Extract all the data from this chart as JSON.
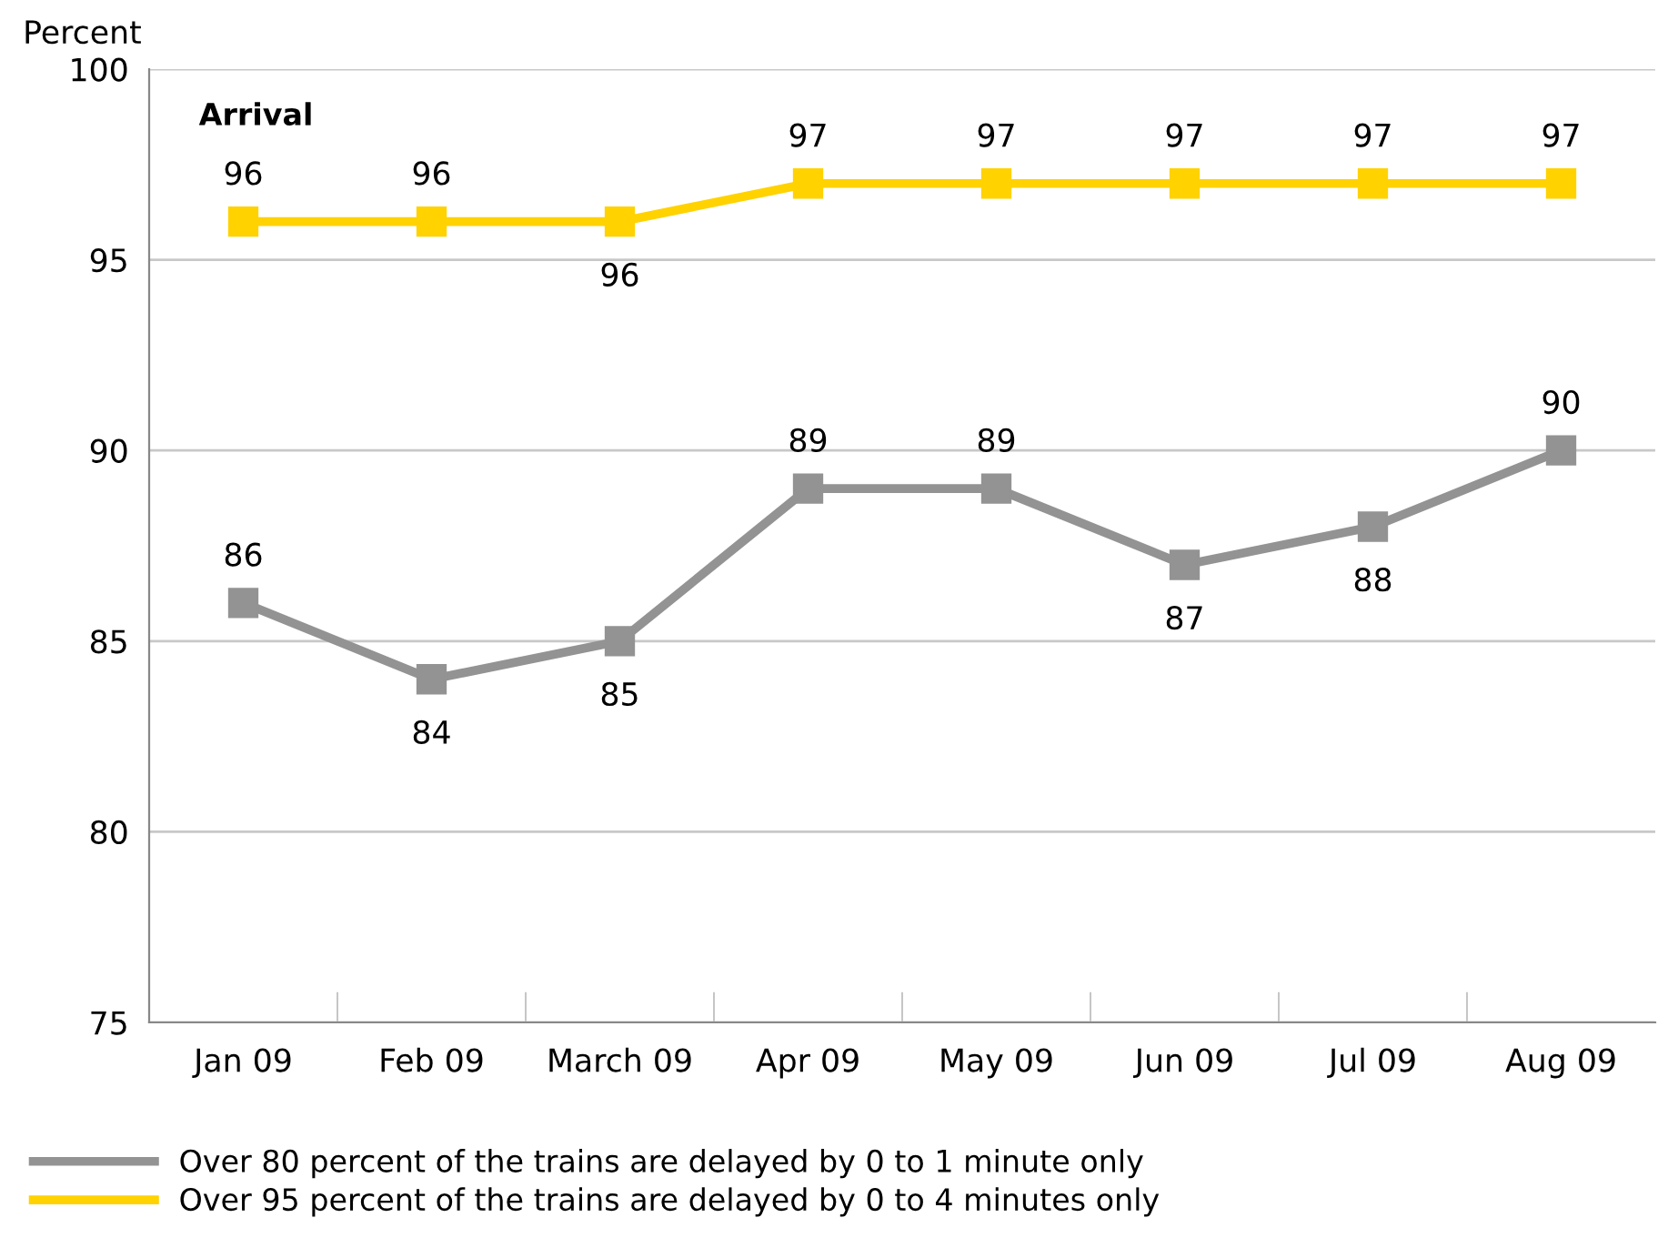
{
  "chart_data": {
    "type": "line",
    "categories": [
      "Jan 09",
      "Feb 09",
      "March 09",
      "Apr 09",
      "May 09",
      "Jun 09",
      "Jul 09",
      "Aug 09"
    ],
    "series": [
      {
        "name": "Over 80 percent of the trains are delayed by 0 to 1 minute only",
        "color": "#939393",
        "values": [
          86,
          84,
          85,
          89,
          89,
          87,
          88,
          90
        ]
      },
      {
        "name": "Over 95 percent of the trains are delayed by 0 to 4 minutes only",
        "color": "#ffd200",
        "values": [
          96,
          96,
          96,
          97,
          97,
          97,
          97,
          97
        ]
      }
    ],
    "ylabel": "Percent",
    "annotations": [
      "Arrival"
    ],
    "ylim": [
      75,
      100
    ],
    "yticks": [
      75,
      80,
      85,
      90,
      95,
      100
    ],
    "grid": "y",
    "legend": "bottom",
    "marker": "square",
    "line_style": "solid",
    "data_labels": true
  }
}
